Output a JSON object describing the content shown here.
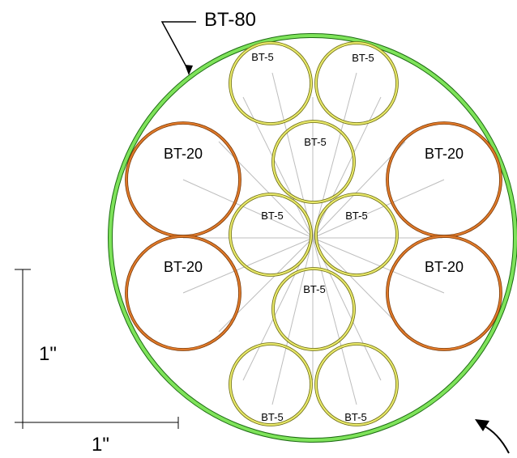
{
  "diagram": {
    "outer_tube": {
      "label": "BT-80",
      "color": "#7ee35a"
    },
    "large_tubes": [
      {
        "label": "BT-20"
      },
      {
        "label": "BT-20"
      },
      {
        "label": "BT-20"
      },
      {
        "label": "BT-20"
      }
    ],
    "large_tube_color": "#e07a2a",
    "small_tubes": [
      {
        "label": "BT-5"
      },
      {
        "label": "BT-5"
      },
      {
        "label": "BT-5"
      },
      {
        "label": "BT-5"
      },
      {
        "label": "BT-5"
      },
      {
        "label": "BT-5"
      },
      {
        "label": "BT-5"
      },
      {
        "label": "BT-5"
      }
    ],
    "small_tube_color": "#e8e86a",
    "scale": {
      "vertical_label": "1\"",
      "horizontal_label": "1\""
    }
  }
}
